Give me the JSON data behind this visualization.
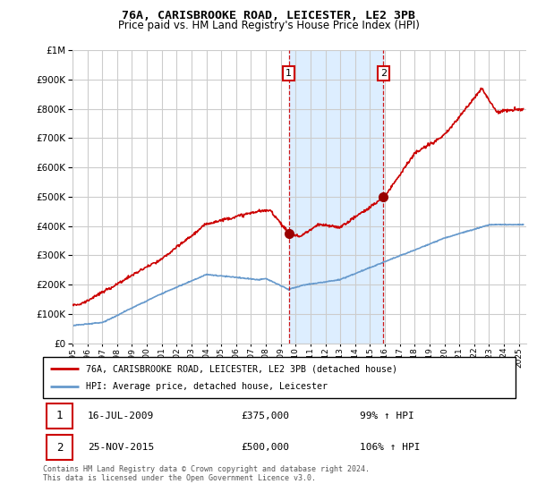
{
  "title": "76A, CARISBROOKE ROAD, LEICESTER, LE2 3PB",
  "subtitle": "Price paid vs. HM Land Registry's House Price Index (HPI)",
  "legend_line1": "76A, CARISBROOKE ROAD, LEICESTER, LE2 3PB (detached house)",
  "legend_line2": "HPI: Average price, detached house, Leicester",
  "footnote": "Contains HM Land Registry data © Crown copyright and database right 2024.\nThis data is licensed under the Open Government Licence v3.0.",
  "sale1_label": "1",
  "sale1_date": "16-JUL-2009",
  "sale1_price": "£375,000",
  "sale1_hpi": "99% ↑ HPI",
  "sale1_year": 2009.54,
  "sale1_value": 375000,
  "sale2_label": "2",
  "sale2_date": "25-NOV-2015",
  "sale2_price": "£500,000",
  "sale2_hpi": "106% ↑ HPI",
  "sale2_year": 2015.9,
  "sale2_value": 500000,
  "ylim": [
    0,
    1000000
  ],
  "xlim_start": 1995,
  "xlim_end": 2025.5,
  "red_color": "#cc0000",
  "blue_color": "#6699cc",
  "shade_color": "#ddeeff",
  "grid_color": "#cccccc",
  "bg_color": "#ffffff"
}
